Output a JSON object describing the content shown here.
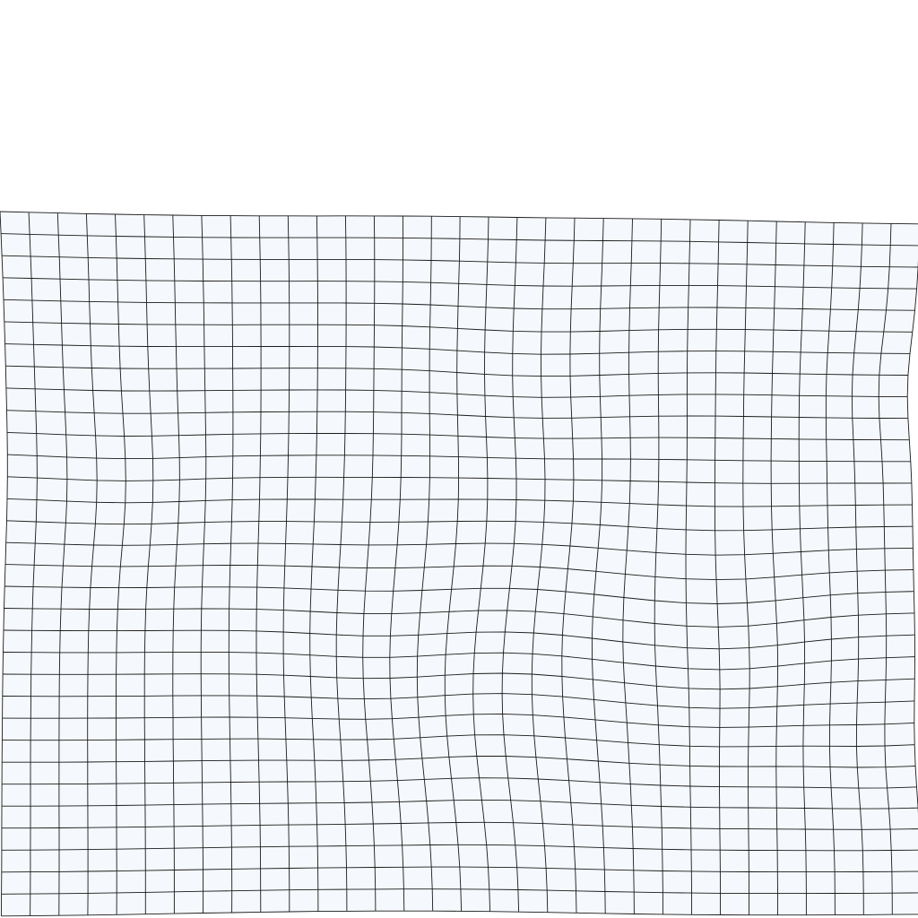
{
  "diagram": {
    "kind": "deformed-grid-mesh",
    "columns": 32,
    "rows": 32,
    "grid_lines_visible": true,
    "colors": {
      "background": "#ffffff",
      "cell_fill": "#f5f8fc",
      "grid_line": "#1a1a1a"
    }
  }
}
